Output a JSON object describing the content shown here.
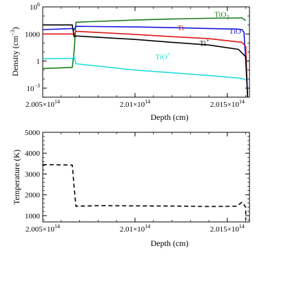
{
  "chart_data": [
    {
      "type": "line",
      "xlabel": "Depth (cm)",
      "ylabel": "Density (cm",
      "ylabel_sup": "−3",
      "ylabel_close": ")",
      "yscale": "log",
      "xlim": [
        200500000000000.0,
        201620000000000.0
      ],
      "ylim": [
        0.0001,
        1000000
      ],
      "x_ticks": [
        {
          "value": 200500000000000.0,
          "label": "2.005×10",
          "sup": "14"
        },
        {
          "value": 201000000000000.0,
          "label": "2.01×10",
          "sup": "14"
        },
        {
          "value": 201500000000000.0,
          "label": "2.015×10",
          "sup": "14"
        }
      ],
      "y_ticks": [
        {
          "value": 1000000,
          "label": "10",
          "sup": "6"
        },
        {
          "value": 1000,
          "label": "1000",
          "sup": ""
        },
        {
          "value": 1,
          "label": "1",
          "sup": ""
        },
        {
          "value": 0.001,
          "label": "10",
          "sup": "−3"
        }
      ],
      "series": [
        {
          "name": "TiO",
          "sub": "2",
          "color": "#1a7a1a",
          "label_at": [
            201430000000000.0,
            80000
          ],
          "x": [
            200500000000000.0,
            200660000000000.0,
            200670000000000.0,
            200680000000000.0,
            200800000000000.0,
            201000000000000.0,
            201200000000000.0,
            201400000000000.0,
            201580000000000.0,
            201600000000000.0
          ],
          "y": [
            0.15,
            0.2,
            10,
            20000,
            25000,
            35000,
            45000,
            55000,
            60000,
            30000
          ]
        },
        {
          "name": "TiO",
          "sub": "",
          "color": "#1515dd",
          "label_at": [
            201510000000000.0,
            1100
          ],
          "x": [
            200500000000000.0,
            200660000000000.0,
            200670000000000.0,
            200680000000000.0,
            201000000000000.0,
            201200000000000.0,
            201400000000000.0,
            201550000000000.0,
            201580000000000.0,
            201590000000000.0,
            201600000000000.0,
            201610000000000.0
          ],
          "y": [
            3000,
            4000,
            3000,
            7000,
            6000,
            5000,
            4000,
            3500,
            3000,
            1500,
            1,
            0.0001
          ]
        },
        {
          "name": "Ti",
          "sub": "",
          "color": "#dd1515",
          "label_at": [
            201230000000000.0,
            2500
          ],
          "x": [
            200500000000000.0,
            200660000000000.0,
            200670000000000.0,
            200680000000000.0,
            201000000000000.0,
            201200000000000.0,
            201400000000000.0,
            201580000000000.0,
            201600000000000.0,
            201610000000000.0
          ],
          "y": [
            1000,
            1000,
            800,
            2000,
            900,
            500,
            300,
            120,
            40,
            0.0001
          ]
        },
        {
          "name": "Ti",
          "sup": "+",
          "sub": "",
          "color": "#000000",
          "label_at": [
            201350000000000.0,
            50
          ],
          "x": [
            200500000000000.0,
            200660000000000.0,
            200670000000000.0,
            200680000000000.0,
            201000000000000.0,
            201200000000000.0,
            201400000000000.0,
            201560000000000.0,
            201600000000000.0,
            201610000000000.0
          ],
          "y": [
            10000,
            10000,
            500,
            600,
            250,
            120,
            60,
            20,
            3,
            0.0001
          ]
        },
        {
          "name": "TiO",
          "sup": "+",
          "sub": "",
          "color": "#22dddd",
          "label_at": [
            201110000000000.0,
            1.6
          ],
          "x": [
            200500000000000.0,
            200660000000000.0,
            200670000000000.0,
            200680000000000.0,
            201000000000000.0,
            201200000000000.0,
            201400000000000.0,
            201580000000000.0,
            201600000000000.0
          ],
          "y": [
            1.8,
            2.0,
            3.0,
            0.5,
            0.1,
            0.05,
            0.025,
            0.012,
            0.008
          ]
        }
      ]
    },
    {
      "type": "line",
      "xlabel": "Depth (cm)",
      "ylabel": "Temperature (K)",
      "xlim": [
        200500000000000.0,
        201620000000000.0
      ],
      "ylim": [
        700,
        5000
      ],
      "x_ticks": [
        {
          "value": 200500000000000.0,
          "label": "2.005×10",
          "sup": "14"
        },
        {
          "value": 201000000000000.0,
          "label": "2.01×10",
          "sup": "14"
        },
        {
          "value": 201500000000000.0,
          "label": "2.015×10",
          "sup": "14"
        }
      ],
      "y_ticks": [
        {
          "value": 1000,
          "label": "1000"
        },
        {
          "value": 2000,
          "label": "2000"
        },
        {
          "value": 3000,
          "label": "3000"
        },
        {
          "value": 4000,
          "label": "4000"
        },
        {
          "value": 5000,
          "label": "5000"
        }
      ],
      "series": [
        {
          "name": "",
          "color": "#000000",
          "dash": "6,4",
          "x": [
            200500000000000.0,
            200660000000000.0,
            200670000000000.0,
            200680000000000.0,
            200800000000000.0,
            201000000000000.0,
            201200000000000.0,
            201400000000000.0,
            201550000000000.0,
            201580000000000.0,
            201600000000000.0,
            201600000000000.0
          ],
          "y": [
            3450,
            3430,
            2400,
            1450,
            1480,
            1470,
            1460,
            1440,
            1450,
            1650,
            1400,
            800
          ]
        }
      ]
    }
  ]
}
